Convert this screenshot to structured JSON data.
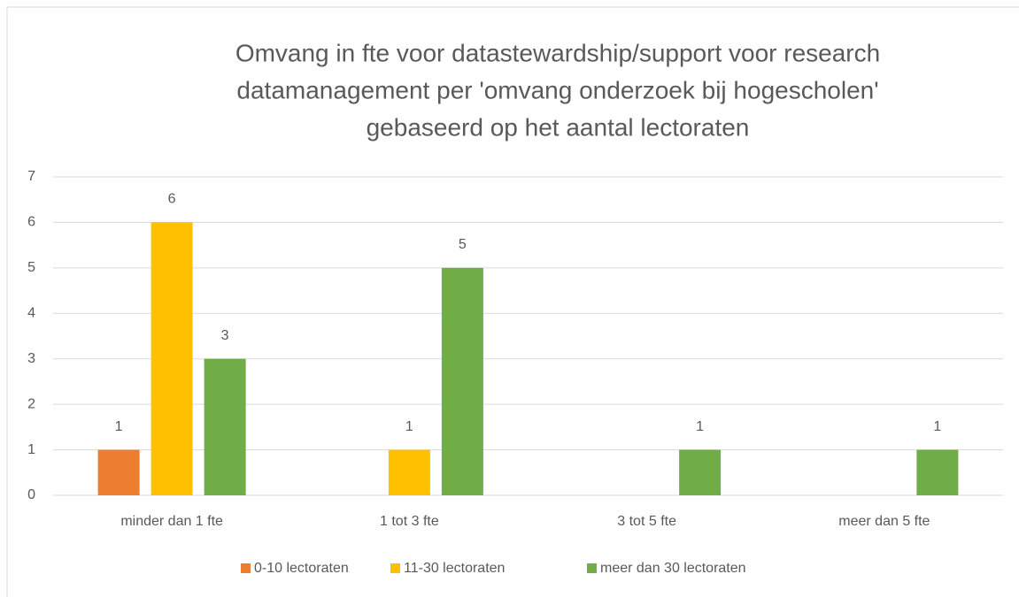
{
  "chart_data": {
    "type": "bar",
    "title": [
      "Omvang in fte voor datastewardship/support voor research",
      "datamanagement per 'omvang onderzoek bij hogescholen'",
      "gebaseerd op het aantal lectoraten"
    ],
    "categories": [
      "minder dan 1 fte",
      "1 tot 3 fte",
      "3 tot 5 fte",
      "meer dan 5 fte"
    ],
    "series": [
      {
        "name": "0-10 lectoraten",
        "color": "#ed7d31",
        "values": [
          1,
          null,
          null,
          null
        ]
      },
      {
        "name": "11-30 lectoraten",
        "color": "#ffc000",
        "values": [
          6,
          1,
          null,
          null
        ]
      },
      {
        "name": "meer dan 30 lectoraten",
        "color": "#70ad47",
        "values": [
          3,
          5,
          1,
          1
        ]
      }
    ],
    "ylim": [
      0,
      7
    ],
    "yticks": [
      0,
      1,
      2,
      3,
      4,
      5,
      6,
      7
    ],
    "grid": true,
    "legend": "bottom"
  }
}
